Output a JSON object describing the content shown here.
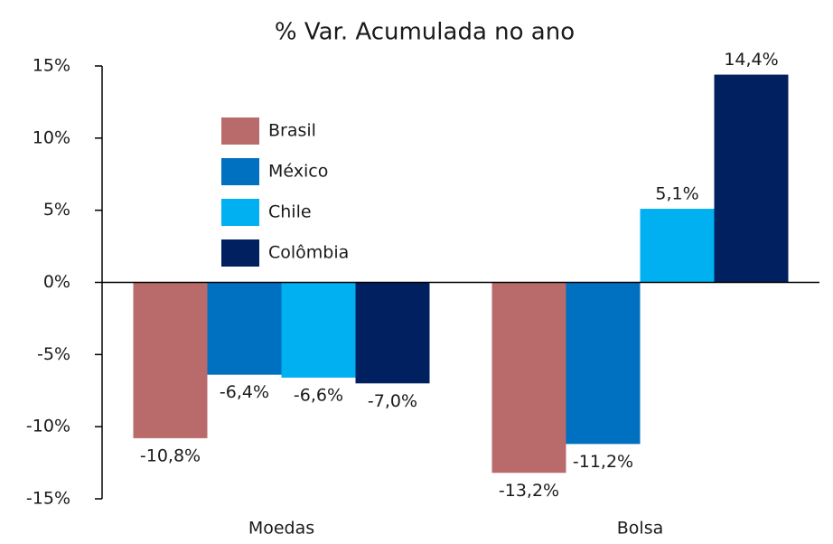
{
  "chart_data": {
    "type": "bar",
    "title": "% Var. Acumulada no ano",
    "categories": [
      "Moedas",
      "Bolsa"
    ],
    "series": [
      {
        "name": "Brasil",
        "color": "#b96b6b",
        "values": [
          -10.8,
          -13.2
        ],
        "value_labels": [
          "-10,8%",
          "-13,2%"
        ]
      },
      {
        "name": "México",
        "color": "#0070c0",
        "values": [
          -6.4,
          -11.2
        ],
        "value_labels": [
          "-6,4%",
          "-11,2%"
        ]
      },
      {
        "name": "Chile",
        "color": "#00b0f0",
        "values": [
          -6.6,
          5.1
        ],
        "value_labels": [
          "-6,6%",
          "5,1%"
        ]
      },
      {
        "name": "Colômbia",
        "color": "#002060",
        "values": [
          -7.0,
          14.4
        ],
        "value_labels": [
          "-7,0%",
          "14,4%"
        ]
      }
    ],
    "ylim": [
      -15,
      15
    ],
    "yticks": [
      {
        "value": -15,
        "label": "-15%"
      },
      {
        "value": -10,
        "label": "-10%"
      },
      {
        "value": -5,
        "label": "-5%"
      },
      {
        "value": 0,
        "label": "0%"
      },
      {
        "value": 5,
        "label": "5%"
      },
      {
        "value": 10,
        "label": "10%"
      },
      {
        "value": 15,
        "label": "15%"
      }
    ],
    "legend": "upper left"
  }
}
